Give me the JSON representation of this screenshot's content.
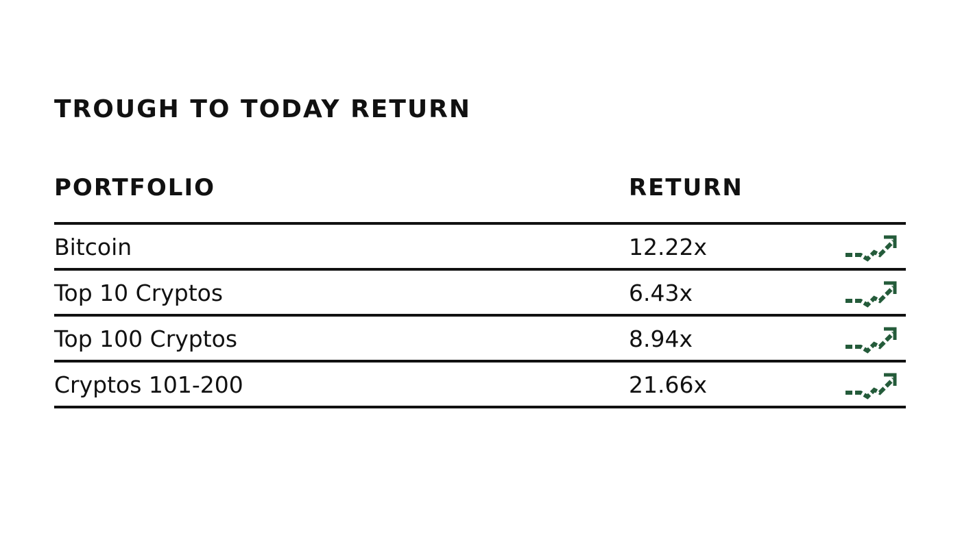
{
  "title": "TROUGH TO TODAY RETURN",
  "colors": {
    "text": "#111111",
    "rule": "#111111",
    "icon": "#245b3a"
  },
  "chart_data": {
    "type": "table",
    "title": "TROUGH TO TODAY RETURN",
    "columns": [
      "PORTFOLIO",
      "RETURN"
    ],
    "rows": [
      {
        "portfolio": "Bitcoin",
        "return": "12.22x",
        "icon": "trend-up-icon"
      },
      {
        "portfolio": "Top 10 Cryptos",
        "return": "6.43x",
        "icon": "trend-up-icon"
      },
      {
        "portfolio": "Top 100 Cryptos",
        "return": "8.94x",
        "icon": "trend-up-icon"
      },
      {
        "portfolio": "Cryptos 101-200",
        "return": "21.66x",
        "icon": "trend-up-icon"
      }
    ]
  }
}
